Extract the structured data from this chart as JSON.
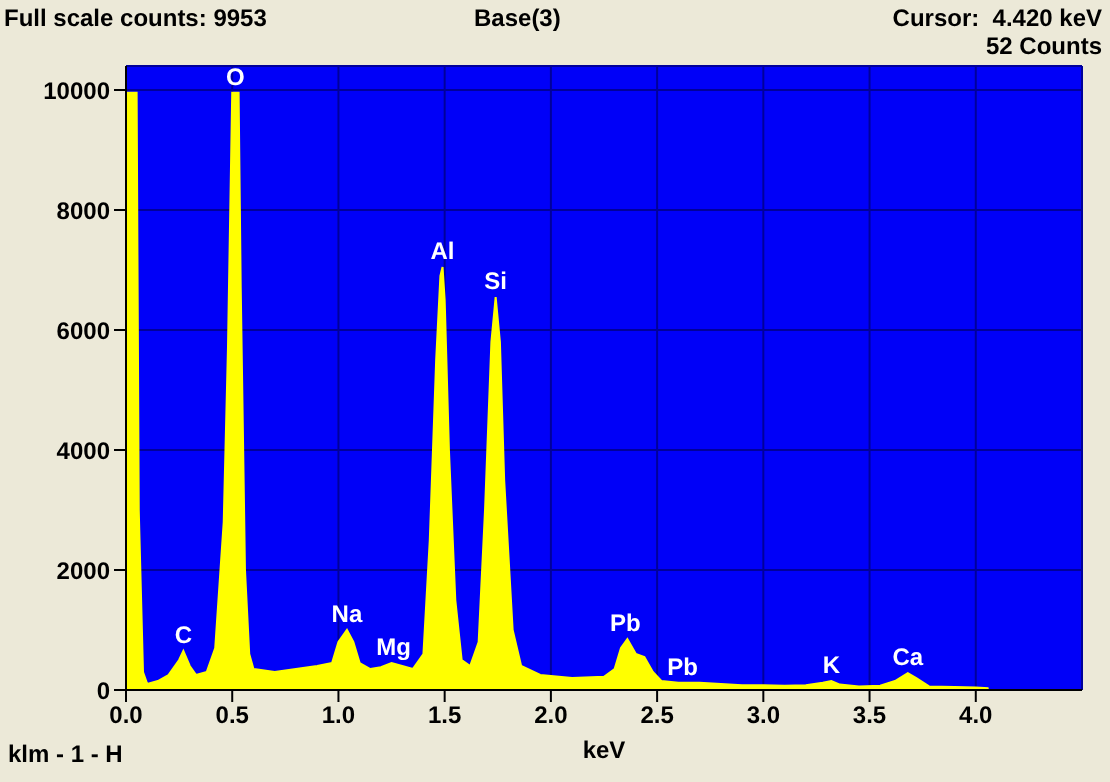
{
  "chart_data": {
    "type": "area",
    "title": "Base(3)",
    "xlabel": "keV",
    "annotations": [
      "Full scale counts: 9953",
      "Cursor:  4.420 keV",
      "52 Counts",
      "klm - 1 - H",
      {
        "text": "C",
        "x": 0.27,
        "y": 650
      },
      {
        "text": "O",
        "x": 0.515,
        "y": 9953
      },
      {
        "text": "Na",
        "x": 1.04,
        "y": 1000
      },
      {
        "text": "Mg",
        "x": 1.26,
        "y": 450
      },
      {
        "text": "Al",
        "x": 1.49,
        "y": 7050
      },
      {
        "text": "Si",
        "x": 1.74,
        "y": 6550
      },
      {
        "text": "Pb",
        "x": 2.35,
        "y": 850
      },
      {
        "text": "Pb",
        "x": 2.62,
        "y": 120
      },
      {
        "text": "K",
        "x": 3.32,
        "y": 150
      },
      {
        "text": "Ca",
        "x": 3.68,
        "y": 280
      }
    ],
    "x": [
      0,
      0.05,
      0.06,
      0.08,
      0.1,
      0.15,
      0.2,
      0.25,
      0.27,
      0.3,
      0.33,
      0.38,
      0.42,
      0.46,
      0.48,
      0.5,
      0.53,
      0.54,
      0.56,
      0.58,
      0.6,
      0.7,
      0.8,
      0.9,
      0.97,
      1.0,
      1.04,
      1.07,
      1.1,
      1.15,
      1.2,
      1.25,
      1.3,
      1.35,
      1.4,
      1.43,
      1.46,
      1.48,
      1.49,
      1.5,
      1.52,
      1.55,
      1.58,
      1.62,
      1.66,
      1.69,
      1.72,
      1.74,
      1.76,
      1.78,
      1.82,
      1.86,
      1.95,
      2.1,
      2.25,
      2.3,
      2.33,
      2.36,
      2.4,
      2.44,
      2.48,
      2.52,
      2.6,
      2.7,
      2.8,
      2.9,
      3.0,
      3.1,
      3.2,
      3.28,
      3.32,
      3.36,
      3.45,
      3.55,
      3.62,
      3.68,
      3.72,
      3.78,
      3.9,
      4.0,
      4.06
    ],
    "values": [
      9953,
      9953,
      3000,
      300,
      100,
      150,
      250,
      500,
      650,
      400,
      250,
      300,
      700,
      2800,
      5700,
      9953,
      9953,
      6700,
      2000,
      600,
      350,
      300,
      350,
      400,
      450,
      800,
      1000,
      800,
      450,
      350,
      380,
      450,
      400,
      350,
      600,
      2500,
      5500,
      6900,
      7050,
      6500,
      4000,
      1500,
      500,
      400,
      800,
      3000,
      5800,
      6550,
      5800,
      3500,
      1000,
      400,
      250,
      200,
      220,
      350,
      700,
      850,
      600,
      550,
      300,
      150,
      120,
      120,
      100,
      80,
      80,
      70,
      80,
      120,
      150,
      90,
      60,
      70,
      150,
      280,
      200,
      60,
      50,
      40,
      30
    ],
    "color": "#ffff00",
    "xlim": [
      0,
      4.5
    ],
    "xticks": [
      {
        "value": 0,
        "label": "0.0"
      },
      0.5,
      {
        "value": 1,
        "label": "1.0"
      },
      1.5,
      {
        "value": 2,
        "label": "2.0"
      },
      2.5,
      {
        "value": 3,
        "label": "3.0"
      },
      3.5,
      {
        "value": 4,
        "label": "4.0"
      }
    ],
    "ylim": [
      0,
      10400
    ],
    "yticks": [
      0,
      2000,
      4000,
      6000,
      8000,
      10000
    ],
    "grid": true
  }
}
